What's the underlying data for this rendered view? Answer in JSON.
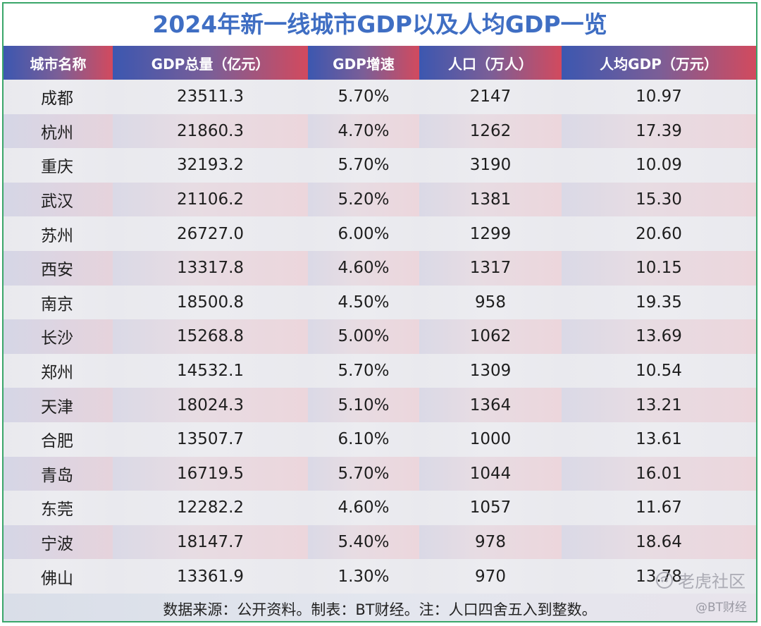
{
  "title": "2024年新一线城市GDP以及人均GDP一览",
  "headers": [
    "城市名称",
    "GDP总量（亿元）",
    "GDP增速",
    "人口（万人）",
    "人均GDP（万元）"
  ],
  "rows": [
    [
      "成都",
      "23511.3",
      "5.70%",
      "2147",
      "10.97"
    ],
    [
      "杭州",
      "21860.3",
      "4.70%",
      "1262",
      "17.39"
    ],
    [
      "重庆",
      "32193.2",
      "5.70%",
      "3190",
      "10.09"
    ],
    [
      "武汉",
      "21106.2",
      "5.20%",
      "1381",
      "15.30"
    ],
    [
      "苏州",
      "26727.0",
      "6.00%",
      "1299",
      "20.60"
    ],
    [
      "西安",
      "13317.8",
      "4.60%",
      "1317",
      "10.15"
    ],
    [
      "南京",
      "18500.8",
      "4.50%",
      "958",
      "19.35"
    ],
    [
      "长沙",
      "15268.8",
      "5.00%",
      "1062",
      "13.69"
    ],
    [
      "郑州",
      "14532.1",
      "5.70%",
      "1309",
      "10.54"
    ],
    [
      "天津",
      "18024.3",
      "5.10%",
      "1364",
      "13.21"
    ],
    [
      "合肥",
      "13507.7",
      "6.10%",
      "1000",
      "13.61"
    ],
    [
      "青岛",
      "16719.5",
      "5.70%",
      "1044",
      "16.01"
    ],
    [
      "东莞",
      "12282.2",
      "4.60%",
      "1057",
      "11.67"
    ],
    [
      "宁波",
      "18147.7",
      "5.40%",
      "978",
      "18.64"
    ],
    [
      "佛山",
      "13361.9",
      "1.30%",
      "970",
      "13.78"
    ]
  ],
  "footer": "数据来源：公开资料。制表：BT财经。注：人口四舍五入到整数。",
  "watermark": {
    "brand": "老虎社区",
    "account": "@BT财经",
    "icon": "tiger-logo-icon"
  },
  "colors": {
    "title": "#3f6ec3",
    "header_gradient_start": "#3c57b0",
    "header_gradient_end": "#d24a5e",
    "border": "#3aa66a"
  }
}
